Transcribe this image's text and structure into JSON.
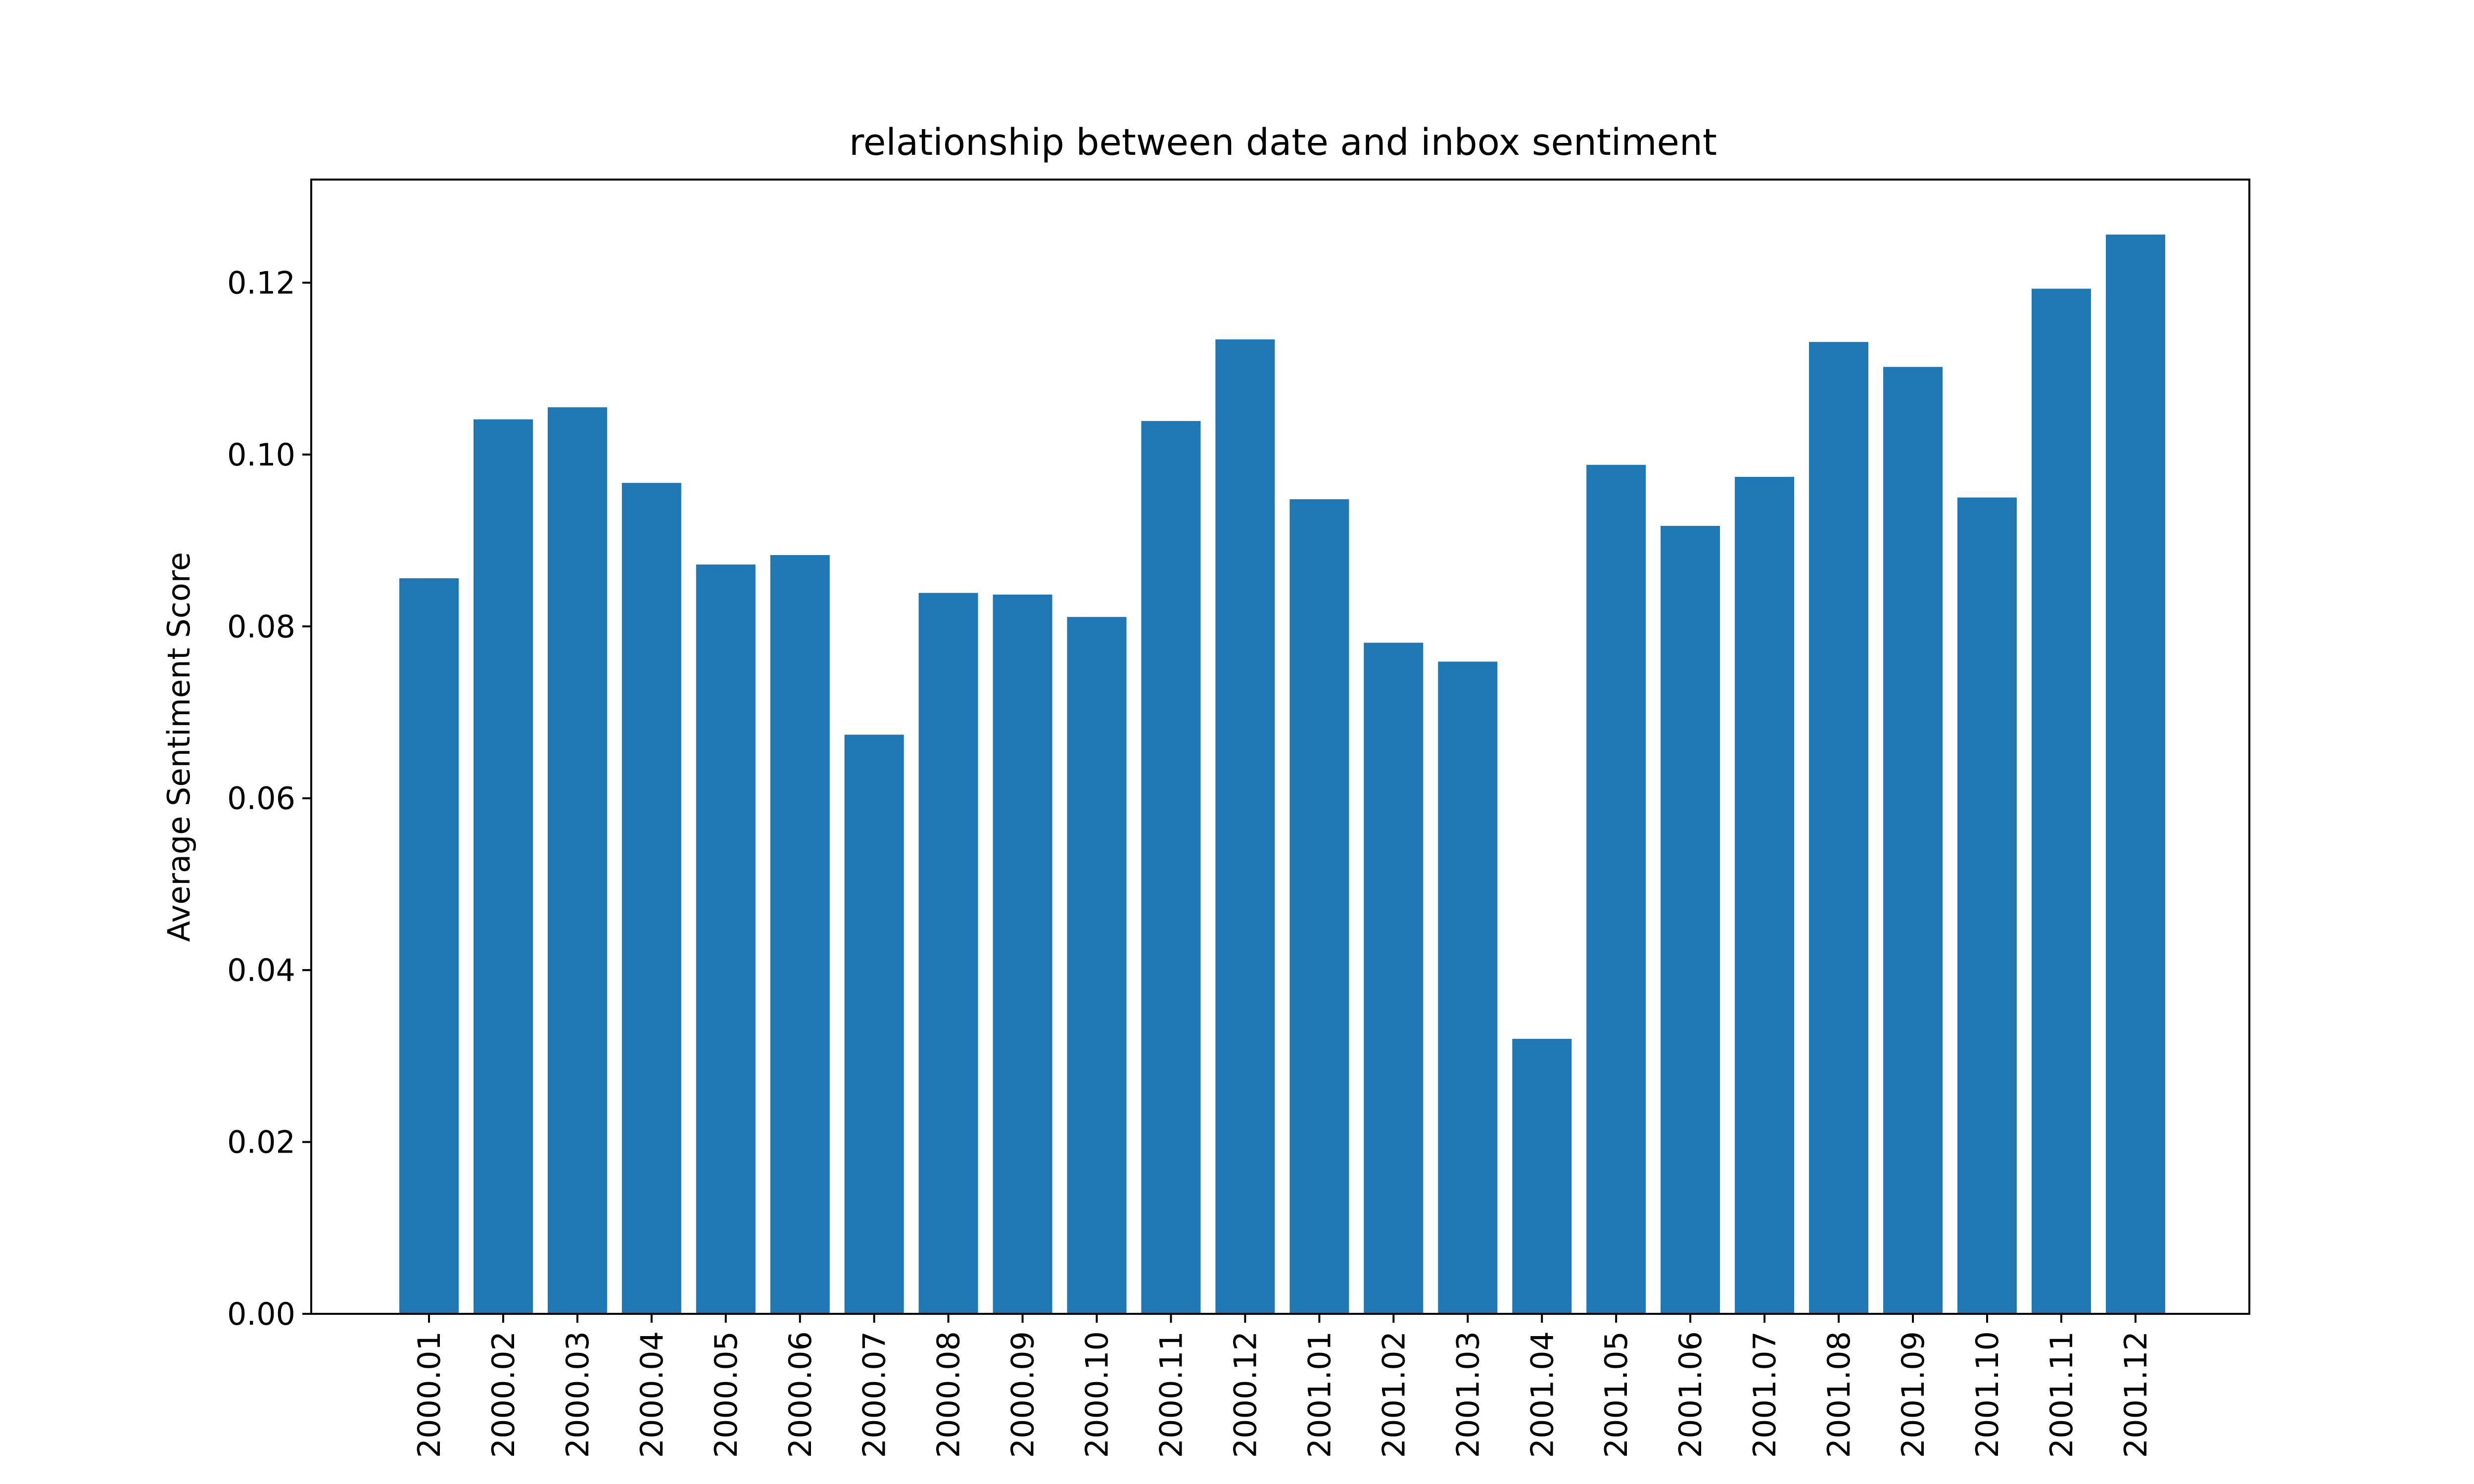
{
  "chart_data": {
    "type": "bar",
    "title": "relationship between date and inbox sentiment",
    "xlabel": "",
    "ylabel": "Average Sentiment Score",
    "categories": [
      "2000.01",
      "2000.02",
      "2000.03",
      "2000.04",
      "2000.05",
      "2000.06",
      "2000.07",
      "2000.08",
      "2000.09",
      "2000.10",
      "2000.11",
      "2000.12",
      "2001.01",
      "2001.02",
      "2001.03",
      "2001.04",
      "2001.05",
      "2001.06",
      "2001.07",
      "2001.08",
      "2001.09",
      "2001.10",
      "2001.11",
      "2001.12"
    ],
    "values": [
      0.0856,
      0.1041,
      0.1055,
      0.0967,
      0.0872,
      0.0883,
      0.0674,
      0.0839,
      0.0837,
      0.0811,
      0.1039,
      0.1134,
      0.0948,
      0.0781,
      0.0759,
      0.032,
      0.0988,
      0.0917,
      0.0974,
      0.1131,
      0.1102,
      0.095,
      0.1193,
      0.1256
    ],
    "ylim": [
      0,
      0.132
    ],
    "yticks": [
      "0.00",
      "0.02",
      "0.04",
      "0.06",
      "0.08",
      "0.10",
      "0.12"
    ],
    "bar_color": "#1f77b4",
    "grid": false,
    "legend": "none"
  }
}
